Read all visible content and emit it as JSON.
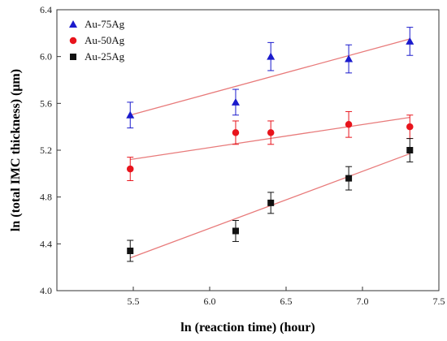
{
  "chart_data": {
    "type": "scatter",
    "title": "",
    "xlabel": "ln (reaction time) (hour)",
    "ylabel": "ln (total IMC thickness) (μm)",
    "xlim": [
      5.0,
      7.5
    ],
    "ylim": [
      4.0,
      6.4
    ],
    "x_ticks": [
      "5.5",
      "6.0",
      "6.5",
      "7.0",
      "7.5"
    ],
    "y_ticks": [
      "4.0",
      "4.4",
      "4.8",
      "5.2",
      "5.6",
      "6.0",
      "6.4"
    ],
    "grid": false,
    "legend_position": "top-left",
    "series": [
      {
        "name": "Au-75Ag",
        "marker": "triangle",
        "color": "#1a1acc",
        "x": [
          5.48,
          6.17,
          6.4,
          6.91,
          7.31
        ],
        "y": [
          5.5,
          5.61,
          6.0,
          5.98,
          6.13
        ],
        "err": [
          0.11,
          0.11,
          0.12,
          0.12,
          0.12
        ],
        "fit": {
          "x": [
            5.48,
            7.31
          ],
          "y": [
            5.5,
            6.15
          ]
        }
      },
      {
        "name": "Au-50Ag",
        "marker": "circle",
        "color": "#e8141c",
        "x": [
          5.48,
          6.17,
          6.4,
          6.91,
          7.31
        ],
        "y": [
          5.04,
          5.35,
          5.35,
          5.42,
          5.4
        ],
        "err": [
          0.1,
          0.1,
          0.1,
          0.11,
          0.1
        ],
        "fit": {
          "x": [
            5.48,
            7.31
          ],
          "y": [
            5.12,
            5.48
          ]
        }
      },
      {
        "name": "Au-25Ag",
        "marker": "square",
        "color": "#111111",
        "x": [
          5.48,
          6.17,
          6.4,
          6.91,
          7.31
        ],
        "y": [
          4.34,
          4.51,
          4.75,
          4.96,
          5.2
        ],
        "err": [
          0.09,
          0.09,
          0.09,
          0.1,
          0.1
        ],
        "fit": {
          "x": [
            5.48,
            7.31
          ],
          "y": [
            4.28,
            5.17
          ]
        }
      }
    ]
  }
}
